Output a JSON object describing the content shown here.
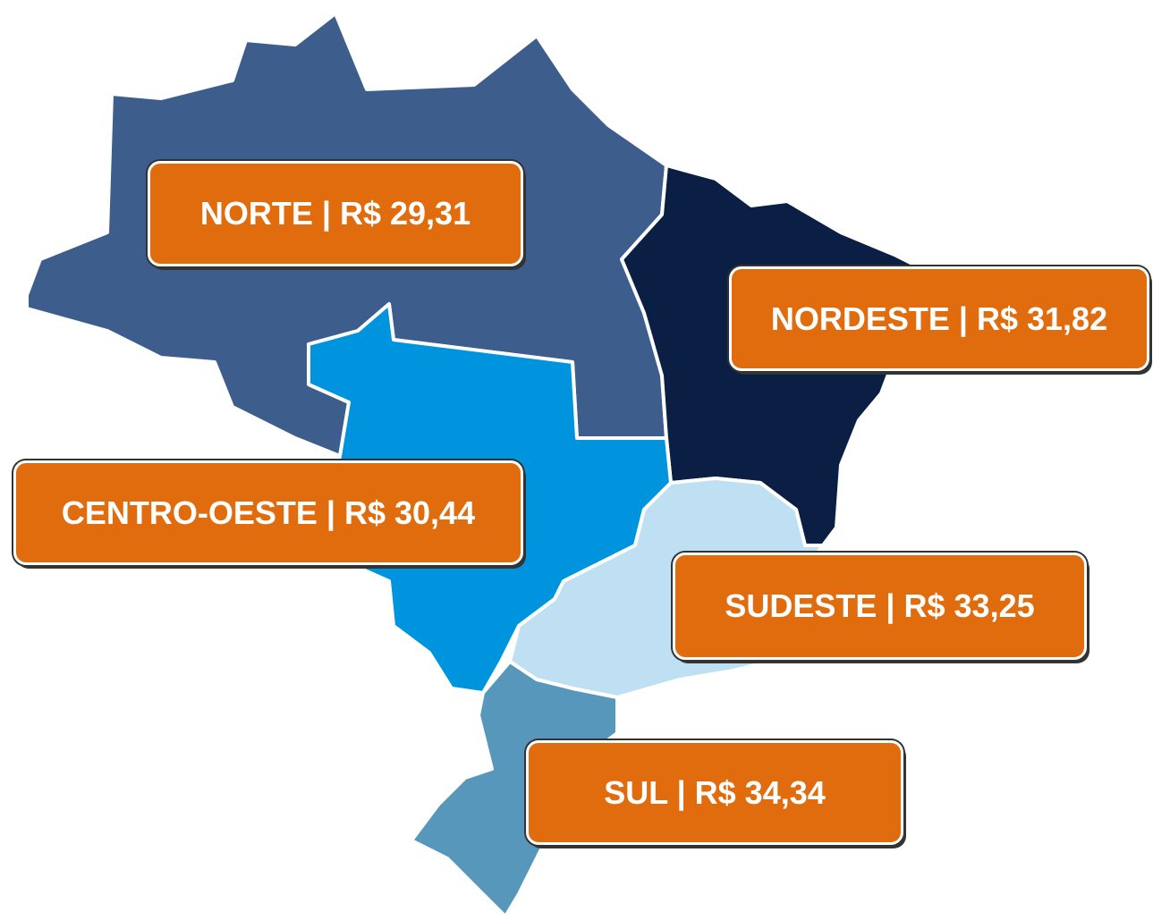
{
  "regions": [
    {
      "label": "NORTE | R$ 29,31",
      "color": "#3d5e8c"
    },
    {
      "label": "NORDESTE | R$ 31,82",
      "color": "#0b1f45"
    },
    {
      "label": "CENTRO-OESTE | R$ 30,44",
      "color": "#0094de"
    },
    {
      "label": "SUDESTE | R$ 33,25",
      "color": "#bfe0f2"
    },
    {
      "label": "SUL | R$ 34,34",
      "color": "#5797bb"
    }
  ]
}
